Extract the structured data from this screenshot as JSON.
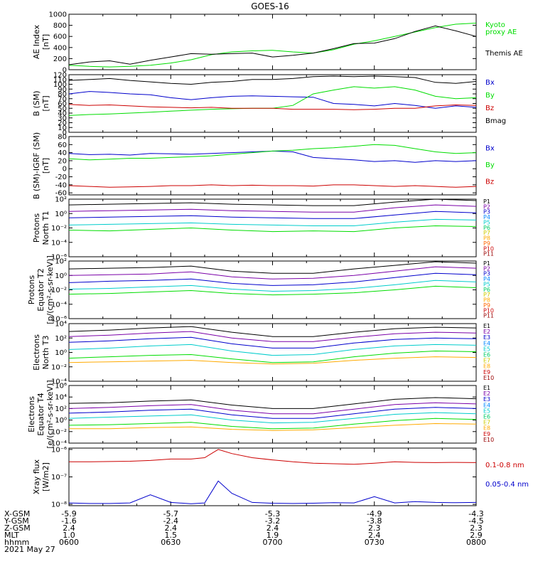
{
  "title": "GOES-16",
  "date_label": "2021 May 27",
  "ephemeris": {
    "rows": [
      {
        "label": "X-GSM",
        "values": [
          "-5.9",
          "-5.7",
          "-5.3",
          "-4.9",
          "-4.3"
        ]
      },
      {
        "label": "Y-GSM",
        "values": [
          "-1.6",
          "-2.4",
          "-3.2",
          "-3.8",
          "-4.5"
        ]
      },
      {
        "label": "Z-GSM",
        "values": [
          "2.4",
          "2.4",
          "2.4",
          "2.3",
          "2.3"
        ]
      },
      {
        "label": "MLT",
        "values": [
          "1.0",
          "1.5",
          "1.9",
          "2.4",
          "2.9"
        ]
      },
      {
        "label": "hhmm",
        "values": [
          "0600",
          "0630",
          "0700",
          "0730",
          "0800"
        ]
      }
    ],
    "tick_values": [
      0,
      30,
      60,
      90,
      120
    ]
  },
  "colors": {
    "black": "#000000",
    "blue": "#0000cc",
    "green": "#00dd00",
    "red": "#cc0000",
    "purple": "#7a00a8",
    "cyan": "#00cccc",
    "yellow": "#eeee00",
    "orange": "#ff8800"
  },
  "chart_data": [
    {
      "type": "line",
      "ylabel": "AE Index\n[nT]",
      "ylim": [
        0,
        1000
      ],
      "yticks": [
        0,
        200,
        400,
        600,
        800,
        1000
      ],
      "x": [
        0,
        6,
        12,
        18,
        24,
        30,
        36,
        42,
        48,
        54,
        60,
        66,
        72,
        78,
        84,
        90,
        96,
        102,
        108,
        114,
        120
      ],
      "series": [
        {
          "name": "Kyoto\nproxy AE",
          "color": "#00dd00",
          "values": [
            80,
            60,
            50,
            60,
            80,
            120,
            180,
            270,
            320,
            340,
            350,
            320,
            300,
            360,
            460,
            520,
            600,
            680,
            760,
            820,
            840
          ]
        },
        {
          "name": "Themis AE",
          "color": "#000000",
          "values": [
            90,
            140,
            160,
            100,
            170,
            230,
            290,
            280,
            290,
            300,
            230,
            260,
            300,
            380,
            470,
            480,
            560,
            690,
            790,
            700,
            600
          ]
        }
      ]
    },
    {
      "type": "line",
      "ylabel": "B (SM)\n[nT]",
      "ylim": [
        0,
        120
      ],
      "yticks": [
        0,
        10,
        20,
        30,
        40,
        50,
        60,
        70,
        80,
        90,
        100,
        110,
        120
      ],
      "x": [
        0,
        6,
        12,
        18,
        24,
        30,
        36,
        42,
        48,
        54,
        60,
        66,
        72,
        78,
        84,
        90,
        96,
        102,
        108,
        114,
        120
      ],
      "series": [
        {
          "name": "Bx",
          "color": "#0000cc",
          "values": [
            80,
            85,
            83,
            80,
            78,
            72,
            68,
            72,
            75,
            76,
            75,
            74,
            73,
            60,
            58,
            55,
            60,
            56,
            50,
            55,
            52
          ]
        },
        {
          "name": "By",
          "color": "#00dd00",
          "values": [
            35,
            37,
            38,
            40,
            42,
            44,
            46,
            48,
            49,
            50,
            50,
            56,
            80,
            88,
            95,
            92,
            95,
            88,
            75,
            70,
            72
          ]
        },
        {
          "name": "Bz",
          "color": "#cc0000",
          "values": [
            58,
            56,
            57,
            55,
            53,
            52,
            51,
            52,
            50,
            50,
            50,
            48,
            48,
            48,
            47,
            48,
            50,
            50,
            55,
            57,
            56
          ]
        },
        {
          "name": "Bmag",
          "color": "#000000",
          "values": [
            108,
            110,
            112,
            108,
            105,
            102,
            100,
            104,
            106,
            110,
            110,
            112,
            116,
            117,
            116,
            117,
            116,
            114,
            104,
            102,
            106
          ]
        }
      ]
    },
    {
      "type": "line",
      "ylabel": "B (SM)-IGRF (SM)\n[nT]",
      "ylim": [
        -65,
        80
      ],
      "yticks": [
        -60,
        -40,
        -20,
        0,
        20,
        40,
        60,
        80
      ],
      "x": [
        0,
        6,
        12,
        18,
        24,
        30,
        36,
        42,
        48,
        54,
        60,
        66,
        72,
        78,
        84,
        90,
        96,
        102,
        108,
        114,
        120
      ],
      "series": [
        {
          "name": "Bx",
          "color": "#0000cc",
          "values": [
            38,
            35,
            36,
            34,
            38,
            37,
            36,
            38,
            40,
            42,
            44,
            42,
            28,
            25,
            22,
            18,
            20,
            16,
            20,
            18,
            20
          ]
        },
        {
          "name": "By",
          "color": "#00dd00",
          "values": [
            25,
            22,
            24,
            26,
            26,
            28,
            30,
            32,
            36,
            40,
            44,
            46,
            50,
            52,
            56,
            60,
            58,
            50,
            42,
            38,
            40
          ]
        },
        {
          "name": "Bz",
          "color": "#cc0000",
          "values": [
            -42,
            -44,
            -46,
            -45,
            -44,
            -42,
            -42,
            -40,
            -42,
            -41,
            -42,
            -42,
            -43,
            -40,
            -40,
            -42,
            -44,
            -42,
            -44,
            -46,
            -44
          ]
        }
      ]
    },
    {
      "type": "line",
      "log": true,
      "ylabel": "Protons\nNorth T1",
      "ylim": [
        -6,
        2
      ],
      "yticks": [
        -6,
        -4,
        -2,
        0,
        2
      ],
      "tick_labels": [
        "10⁻⁶",
        "10⁻⁴",
        "10⁻²",
        "10⁰",
        "10²"
      ],
      "x": [
        0,
        12,
        24,
        36,
        48,
        60,
        72,
        84,
        96,
        108,
        120
      ],
      "legend": [
        "P1",
        "P2",
        "P3",
        "P4",
        "P5",
        "P6",
        "P7",
        "P8",
        "P9",
        "P10",
        "P11"
      ],
      "legend_colors": [
        "#000000",
        "#7a00a8",
        "#0000cc",
        "#0088ff",
        "#00cccc",
        "#00cc66",
        "#cccc00",
        "#ffaa00",
        "#ff6600",
        "#cc0000",
        "#990000"
      ],
      "series": [
        {
          "name": "P1",
          "color": "#000000",
          "values": [
            1.2,
            1.3,
            1.4,
            1.5,
            1.3,
            1.2,
            1.1,
            1.1,
            1.6,
            2.0,
            1.8
          ]
        },
        {
          "name": "P2",
          "color": "#7a00a8",
          "values": [
            0.3,
            0.4,
            0.5,
            0.6,
            0.4,
            0.3,
            0.2,
            0.2,
            0.8,
            1.2,
            1.0
          ]
        },
        {
          "name": "P3",
          "color": "#0000cc",
          "values": [
            -0.6,
            -0.5,
            -0.4,
            -0.3,
            -0.5,
            -0.6,
            -0.7,
            -0.7,
            -0.2,
            0.3,
            0.1
          ]
        },
        {
          "name": "P4",
          "color": "#00cccc",
          "values": [
            -1.6,
            -1.5,
            -1.4,
            -1.3,
            -1.5,
            -1.6,
            -1.7,
            -1.7,
            -1.2,
            -0.8,
            -0.9
          ]
        },
        {
          "name": "P5",
          "color": "#00dd00",
          "values": [
            -2.3,
            -2.4,
            -2.2,
            -2.0,
            -2.3,
            -2.5,
            -2.4,
            -2.5,
            -2.0,
            -1.7,
            -1.8
          ]
        }
      ]
    },
    {
      "type": "line",
      "log": true,
      "ylabel": "Protons\nEquator T2\n[p/(cm²-s-sr-keV)]",
      "ylim": [
        -6,
        2
      ],
      "yticks": [
        -6,
        -4,
        -2,
        0,
        2
      ],
      "tick_labels": [
        "10⁻⁶",
        "10⁻⁴",
        "10⁻²",
        "10⁰",
        "10²"
      ],
      "x": [
        0,
        12,
        24,
        36,
        48,
        60,
        72,
        84,
        96,
        108,
        120
      ],
      "legend": [
        "P1",
        "P2",
        "P3",
        "P4",
        "P5",
        "P6",
        "P7",
        "P8",
        "P9",
        "P10",
        "P11"
      ],
      "legend_colors": [
        "#000000",
        "#7a00a8",
        "#0000cc",
        "#0088ff",
        "#00cccc",
        "#00cc66",
        "#cccc00",
        "#ffaa00",
        "#ff6600",
        "#cc0000",
        "#990000"
      ],
      "series": [
        {
          "name": "P1",
          "color": "#000000",
          "values": [
            0.9,
            1.0,
            1.1,
            1.3,
            0.6,
            0.3,
            0.3,
            0.9,
            1.4,
            1.9,
            1.7
          ]
        },
        {
          "name": "P2",
          "color": "#7a00a8",
          "values": [
            0.0,
            0.1,
            0.2,
            0.5,
            -0.2,
            -0.5,
            -0.4,
            0.0,
            0.6,
            1.2,
            1.0
          ]
        },
        {
          "name": "P3",
          "color": "#0000cc",
          "values": [
            -1.0,
            -0.8,
            -0.7,
            -0.5,
            -1.1,
            -1.4,
            -1.3,
            -0.9,
            -0.3,
            0.3,
            0.1
          ]
        },
        {
          "name": "P4",
          "color": "#00cccc",
          "values": [
            -1.9,
            -1.8,
            -1.6,
            -1.4,
            -1.9,
            -2.2,
            -2.1,
            -1.8,
            -1.3,
            -0.7,
            -0.9
          ]
        },
        {
          "name": "P5",
          "color": "#00dd00",
          "values": [
            -2.6,
            -2.5,
            -2.3,
            -2.1,
            -2.5,
            -2.7,
            -2.6,
            -2.4,
            -2.0,
            -1.5,
            -1.7
          ]
        }
      ]
    },
    {
      "type": "line",
      "log": true,
      "ylabel": "Electrons\nNorth T3",
      "ylim": [
        -4,
        4
      ],
      "yticks": [
        -4,
        -2,
        0,
        2,
        4
      ],
      "tick_labels": [
        "10⁻⁴",
        "10⁻²",
        "10⁰",
        "10²",
        "10⁴"
      ],
      "x": [
        0,
        12,
        24,
        36,
        48,
        60,
        72,
        84,
        96,
        108,
        120
      ],
      "legend": [
        "E1",
        "E2",
        "E3",
        "E4",
        "E5",
        "E6",
        "E7",
        "E8",
        "E9",
        "E10"
      ],
      "legend_colors": [
        "#000000",
        "#7a00a8",
        "#0000cc",
        "#0088ff",
        "#00cccc",
        "#00cc66",
        "#cccc00",
        "#ffaa00",
        "#cc0000",
        "#990000"
      ],
      "series": [
        {
          "name": "E1",
          "color": "#000000",
          "values": [
            2.9,
            3.1,
            3.4,
            3.6,
            2.8,
            2.2,
            2.2,
            2.8,
            3.3,
            3.5,
            3.4
          ]
        },
        {
          "name": "E2",
          "color": "#7a00a8",
          "values": [
            2.2,
            2.4,
            2.7,
            2.9,
            2.0,
            1.5,
            1.5,
            2.1,
            2.6,
            2.8,
            2.7
          ]
        },
        {
          "name": "E3",
          "color": "#0000cc",
          "values": [
            1.4,
            1.6,
            1.9,
            2.1,
            1.2,
            0.6,
            0.6,
            1.3,
            1.8,
            2.0,
            1.9
          ]
        },
        {
          "name": "E4",
          "color": "#00cccc",
          "values": [
            0.4,
            0.6,
            0.9,
            1.1,
            0.2,
            -0.4,
            -0.3,
            0.4,
            0.9,
            1.1,
            1.0
          ]
        },
        {
          "name": "E5",
          "color": "#00dd00",
          "values": [
            -0.8,
            -0.6,
            -0.4,
            -0.3,
            -0.9,
            -1.4,
            -1.3,
            -0.6,
            -0.1,
            0.2,
            0.1
          ]
        },
        {
          "name": "E6",
          "color": "#ffaa00",
          "values": [
            -1.4,
            -1.3,
            -1.2,
            -1.1,
            -1.4,
            -1.6,
            -1.5,
            -1.1,
            -0.8,
            -0.6,
            -0.7
          ]
        }
      ]
    },
    {
      "type": "line",
      "log": true,
      "ylabel": "Electrons\nEquator T4\n[e/(cm²-s-sr-keV)]",
      "ylim": [
        -4,
        6
      ],
      "yticks": [
        -4,
        -2,
        0,
        2,
        4,
        6
      ],
      "tick_labels": [
        "10⁻⁴",
        "10⁻²",
        "10⁰",
        "10²",
        "10⁴",
        "10⁶"
      ],
      "x": [
        0,
        12,
        24,
        36,
        48,
        60,
        72,
        84,
        96,
        108,
        120
      ],
      "legend": [
        "E1",
        "E2",
        "E3",
        "E4",
        "E5",
        "E6",
        "E7",
        "E8",
        "E9",
        "E10"
      ],
      "legend_colors": [
        "#000000",
        "#7a00a8",
        "#0000cc",
        "#0088ff",
        "#00cccc",
        "#00cc66",
        "#cccc00",
        "#ffaa00",
        "#cc0000",
        "#990000"
      ],
      "series": [
        {
          "name": "E1",
          "color": "#000000",
          "values": [
            2.9,
            3.0,
            3.3,
            3.5,
            2.6,
            2.0,
            2.0,
            2.8,
            3.6,
            3.9,
            3.7
          ]
        },
        {
          "name": "E2",
          "color": "#7a00a8",
          "values": [
            2.0,
            2.2,
            2.5,
            2.7,
            1.7,
            1.1,
            1.1,
            1.9,
            2.7,
            3.0,
            2.8
          ]
        },
        {
          "name": "E3",
          "color": "#0000cc",
          "values": [
            1.2,
            1.4,
            1.7,
            1.9,
            0.9,
            0.3,
            0.3,
            1.1,
            1.9,
            2.2,
            2.0
          ]
        },
        {
          "name": "E4",
          "color": "#00cccc",
          "values": [
            0.3,
            0.5,
            0.7,
            0.9,
            0.0,
            -0.5,
            -0.4,
            0.3,
            1.0,
            1.3,
            1.1
          ]
        },
        {
          "name": "E5",
          "color": "#00dd00",
          "values": [
            -0.9,
            -0.8,
            -0.6,
            -0.4,
            -1.1,
            -1.5,
            -1.4,
            -0.7,
            -0.1,
            0.3,
            0.1
          ]
        },
        {
          "name": "E6",
          "color": "#ffaa00",
          "values": [
            -1.5,
            -1.5,
            -1.3,
            -1.2,
            -1.6,
            -1.8,
            -1.7,
            -1.3,
            -0.9,
            -0.6,
            -0.7
          ]
        }
      ]
    },
    {
      "type": "line",
      "log": true,
      "ylabel": "Xray  flux\n[W/m2]",
      "ylim": [
        -8.05,
        -5.95
      ],
      "yticks": [
        -8,
        -7,
        -6
      ],
      "tick_labels": [
        "10⁻⁸",
        "10⁻⁷",
        "10⁻⁶"
      ],
      "x": [
        0,
        6,
        12,
        18,
        24,
        30,
        36,
        40,
        44,
        48,
        54,
        60,
        66,
        72,
        78,
        84,
        90,
        96,
        102,
        108,
        114,
        120
      ],
      "series": [
        {
          "name": "0.1-0.8 nm",
          "color": "#cc0000",
          "values": [
            -6.45,
            -6.45,
            -6.44,
            -6.43,
            -6.4,
            -6.35,
            -6.35,
            -6.3,
            -6.0,
            -6.15,
            -6.3,
            -6.38,
            -6.45,
            -6.5,
            -6.52,
            -6.54,
            -6.5,
            -6.45,
            -6.47,
            -6.48,
            -6.47,
            -6.48
          ]
        },
        {
          "name": "0.05-0.4 nm",
          "color": "#0000cc",
          "values": [
            -7.95,
            -7.97,
            -7.97,
            -7.95,
            -7.65,
            -7.93,
            -7.98,
            -7.95,
            -7.15,
            -7.6,
            -7.93,
            -7.96,
            -7.97,
            -7.96,
            -7.94,
            -7.95,
            -7.72,
            -7.95,
            -7.9,
            -7.93,
            -7.94,
            -7.93
          ]
        }
      ]
    }
  ],
  "legends": [
    [
      {
        "text": "Kyoto",
        "color": "#00dd00"
      },
      {
        "text": "proxy AE",
        "color": "#00dd00"
      },
      {
        "text": "Themis AE",
        "color": "#000000"
      }
    ],
    [
      {
        "text": "Bx",
        "color": "#0000cc"
      },
      {
        "text": "By",
        "color": "#00dd00"
      },
      {
        "text": "Bz",
        "color": "#cc0000"
      },
      {
        "text": "Bmag",
        "color": "#000000"
      }
    ],
    [
      {
        "text": "Bx",
        "color": "#0000cc"
      },
      {
        "text": "By",
        "color": "#00dd00"
      },
      {
        "text": "Bz",
        "color": "#cc0000"
      }
    ],
    [],
    [],
    [],
    [],
    [
      {
        "text": "0.1-0.8 nm",
        "color": "#cc0000"
      },
      {
        "text": "0.05-0.4 nm",
        "color": "#0000cc"
      }
    ]
  ]
}
